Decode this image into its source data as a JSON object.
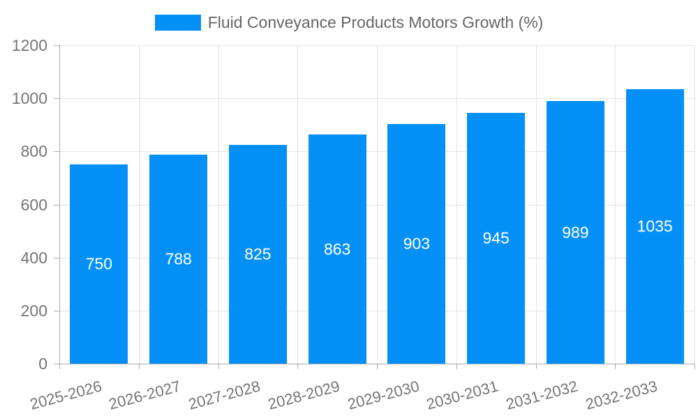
{
  "legend": {
    "label": "Fluid Conveyance Products Motors Growth (%)"
  },
  "chart_data": {
    "type": "bar",
    "title": "Fluid Conveyance Products Motors Growth (%)",
    "categories": [
      "2025-2026",
      "2026-2027",
      "2027-2028",
      "2028-2029",
      "2029-2030",
      "2030-2031",
      "2031-2032",
      "2032-2033"
    ],
    "series": [
      {
        "name": "Fluid Conveyance Products Motors Growth (%)",
        "values": [
          750,
          788,
          825,
          863,
          903,
          945,
          989,
          1035
        ]
      }
    ],
    "value_labels": [
      "750",
      "788",
      "825",
      "863",
      "903",
      "945",
      "989",
      "1035"
    ],
    "xlabel": "",
    "ylabel": "",
    "ylim": [
      0,
      1200
    ],
    "ytick_step": 200,
    "yticks": [
      0,
      200,
      400,
      600,
      800,
      1000,
      1200
    ],
    "grid": true,
    "legend_position": "top",
    "x_label_rotation_deg": -15
  },
  "colors": {
    "bar": "#0590F8",
    "grid": "#E3E3E3",
    "axis": "#AAAAAA",
    "tick_text": "#757575",
    "legend_text": "#666666",
    "value_label": "#FFFFFF",
    "background": "#FFFFFF"
  }
}
